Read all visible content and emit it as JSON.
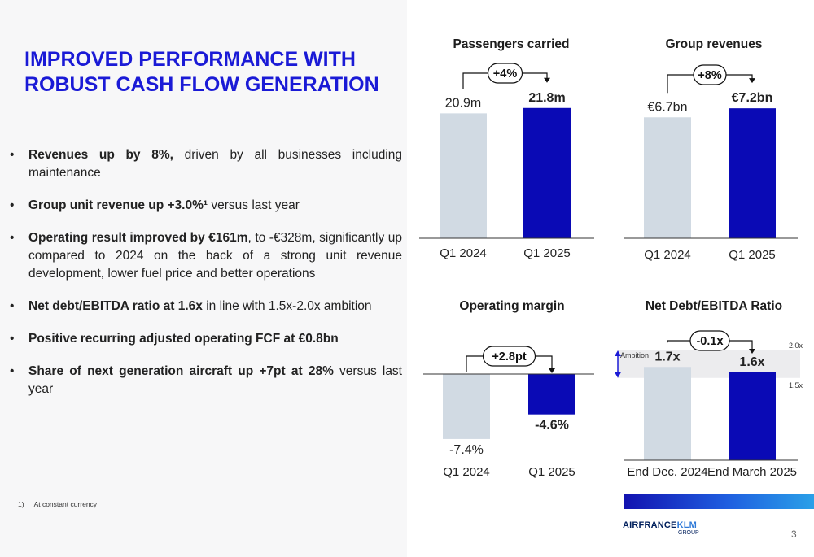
{
  "title": {
    "line1": "IMPROVED PERFORMANCE WITH",
    "line2": "ROBUST CASH FLOW GENERATION"
  },
  "bullets": [
    {
      "bold": "Revenues up by 8%,",
      "rest": " driven by all businesses including maintenance"
    },
    {
      "bold": "Group unit revenue up +3.0%¹",
      "rest": " versus last year"
    },
    {
      "bold": "Operating result improved by €161m",
      "rest": ", to -€328m, significantly up compared to 2024 on the back of a strong unit revenue development, lower fuel price and better operations"
    },
    {
      "bold": "Net debt/EBITDA ratio at 1.6x",
      "rest": " in line with 1.5x-2.0x ambition"
    },
    {
      "bold": "Positive recurring adjusted operating FCF at €0.8bn",
      "rest": ""
    },
    {
      "bold": "Share of next generation aircraft up +7pt at 28%",
      "rest": " versus last year"
    }
  ],
  "footnote": {
    "num": "1)",
    "text": "At constant currency"
  },
  "colors": {
    "accent": "#1a1ad6",
    "bar_prior": "#d1dae3",
    "bar_current": "#0a0ab5",
    "ambition_band": "#ececee"
  },
  "chart_data": [
    {
      "type": "bar",
      "title": "Passengers carried",
      "categories": [
        "Q1 2024",
        "Q1 2025"
      ],
      "values": [
        20.9,
        21.8
      ],
      "value_labels": [
        "20.9m",
        "21.8m"
      ],
      "change_label": "+4%"
    },
    {
      "type": "bar",
      "title": "Group revenues",
      "categories": [
        "Q1 2024",
        "Q1 2025"
      ],
      "values": [
        6.7,
        7.2
      ],
      "value_labels": [
        "€6.7bn",
        "€7.2bn"
      ],
      "change_label": "+8%"
    },
    {
      "type": "bar",
      "title": "Operating margin",
      "categories": [
        "Q1 2024",
        "Q1 2025"
      ],
      "values": [
        -7.4,
        -4.6
      ],
      "value_labels": [
        "-7.4%",
        "-4.6%"
      ],
      "change_label": "+2.8pt"
    },
    {
      "type": "bar",
      "title": "Net Debt/EBITDA Ratio",
      "categories": [
        "End Dec. 2024",
        "End March 2025"
      ],
      "values": [
        1.7,
        1.6
      ],
      "value_labels": [
        "1.7x",
        "1.6x"
      ],
      "change_label": "-0.1x",
      "ambition": {
        "label": "Ambition",
        "range": [
          1.5,
          2.0
        ],
        "low_label": "1.5x",
        "high_label": "2.0x"
      }
    }
  ],
  "logo": {
    "part1": "AIRFRANCE",
    "part2": "KLM",
    "sub": "GROUP"
  },
  "page_number": "3"
}
